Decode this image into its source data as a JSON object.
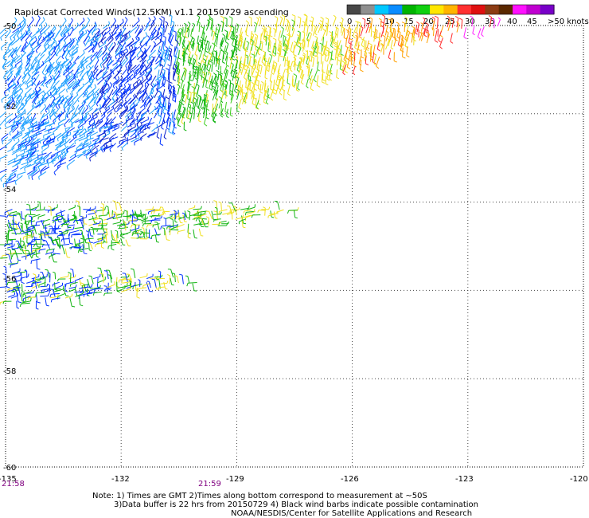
{
  "title": "Rapidscat Corrected Winds(12.5KM) v1.1 20150729 ascending",
  "legend": {
    "labels": [
      "0",
      "5",
      "10",
      "15",
      "20",
      "25",
      "30",
      "35",
      "40",
      "45",
      ">50 knots"
    ],
    "colors": [
      "#474747",
      "#8f8f8f",
      "#00c8ff",
      "#0a8cff",
      "#00b400",
      "#10d010",
      "#ffe600",
      "#ffb400",
      "#ff3030",
      "#e01010",
      "#8c3c14",
      "#5a2800",
      "#ff10ff",
      "#c000d0",
      "#7800c8"
    ]
  },
  "axes": {
    "lon_labels": [
      "-135",
      "-132",
      "-129",
      "-126",
      "-123",
      "-120"
    ],
    "lat_labels": [
      "-50",
      "-52",
      "-54",
      "-56",
      "-58",
      "-60"
    ]
  },
  "times": [
    "21:58",
    "21:59"
  ],
  "notes": [
    "Note: 1) Times are GMT 2)Times along bottom correspond to measurement at ~50S",
    "3)Data buffer is 22 hrs from 20150729 4) Black wind barbs indicate possible contamination",
    "NOAA/NESDIS/Center for Satellite Applications and Research"
  ],
  "swaths": [
    {
      "name": "main",
      "lon_range": [
        -135.0,
        -122.4
      ],
      "lat_top": -50.0,
      "lat_bottom_west": -53.5,
      "lat_bottom_east": -50.0
    },
    {
      "name": "band-1",
      "lon_range": [
        -135.0,
        -127.3
      ],
      "lat_top_west": -54.5,
      "lat_top_east": -54.4,
      "lat_bottom_west": -55.6,
      "lat_bottom_east": -54.7
    },
    {
      "name": "band-2",
      "lon_range": [
        -135.0,
        -130.0
      ],
      "lat_top_west": -55.7,
      "lat_top_east": -56.0,
      "lat_bottom_west": -56.6,
      "lat_bottom_east": -56.3
    }
  ]
}
